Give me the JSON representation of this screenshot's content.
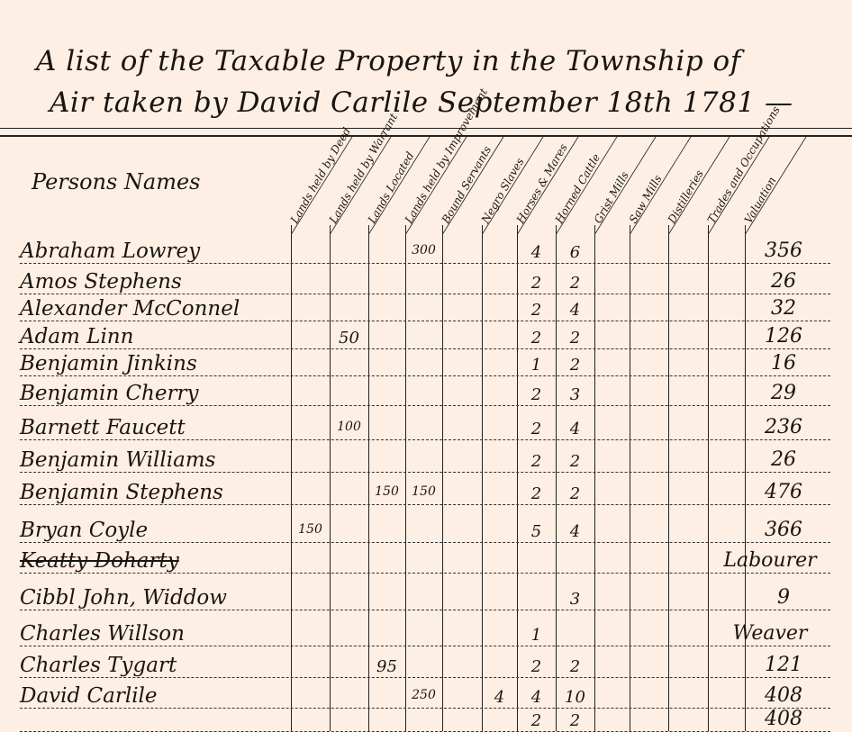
{
  "title": {
    "line1": "A list of the Taxable Property in the Township of",
    "line2": "Air taken by David Carlile September 18th 1781 —"
  },
  "names_header": "Persons Names",
  "columns": [
    "Lands held by Deed",
    "Lands held by Warrant",
    "Lands Located",
    "Lands held by Improvement",
    "Bound Servants",
    "Negro Slaves",
    "Horses & Mares",
    "Horned Cattle",
    "Grist Mills",
    "Saw Mills",
    "Distilleries",
    "Trades and Occupations",
    "Valuation"
  ],
  "rows": [
    {
      "name": "Abraham Lowrey",
      "improvement": "300",
      "horses": "4",
      "cattle": "6",
      "valuation": "356"
    },
    {
      "name": "Amos Stephens",
      "horses": "2",
      "cattle": "2",
      "valuation": "26"
    },
    {
      "name": "Alexander McConnel",
      "horses": "2",
      "cattle": "4",
      "valuation": "32"
    },
    {
      "name": "Adam Linn",
      "warrant": "50",
      "horses": "2",
      "cattle": "2",
      "valuation": "126"
    },
    {
      "name": "Benjamin Jinkins",
      "horses": "1",
      "cattle": "2",
      "valuation": "16"
    },
    {
      "name": "Benjamin Cherry",
      "horses": "2",
      "cattle": "3",
      "valuation": "29"
    },
    {
      "name": "Barnett Faucett",
      "warrant": "100",
      "horses": "2",
      "cattle": "4",
      "valuation": "236"
    },
    {
      "name": "Benjamin Williams",
      "horses": "2",
      "cattle": "2",
      "valuation": "26"
    },
    {
      "name": "Benjamin Stephens",
      "located": "150",
      "improvement": "150",
      "horses": "2",
      "cattle": "2",
      "valuation": "476"
    },
    {
      "name": "Bryan Coyle",
      "deed": "150",
      "horses": "5",
      "cattle": "4",
      "valuation": "366"
    },
    {
      "name": "Keatty Doharty",
      "struck": true,
      "trade": "Labourer"
    },
    {
      "name": "Cibbl John, Widdow",
      "cattle": "3",
      "valuation": "9"
    },
    {
      "name": "Charles Willson",
      "horses": "1",
      "trade": "Weaver"
    },
    {
      "name": "Charles Tygart",
      "located": "95",
      "horses": "2",
      "cattle": "2",
      "valuation": "121"
    },
    {
      "name": "David Carlile",
      "improvement": "250",
      "slaves": "4",
      "horses": "4",
      "cattle": "10",
      "valuation": "408"
    },
    {
      "name": "",
      "horses": "2",
      "cattle": "2",
      "valuation": "408"
    }
  ]
}
